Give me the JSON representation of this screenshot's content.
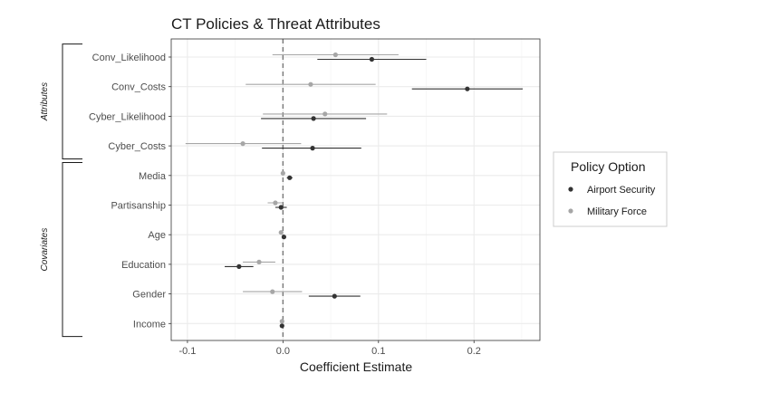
{
  "chart_data": {
    "type": "scatter",
    "subtype": "coefficient-plot-with-confidence-intervals",
    "title": "CT Policies & Threat Attributes",
    "xlabel": "Coefficient Estimate",
    "ylabel": "",
    "xlim": [
      -0.117,
      0.269
    ],
    "x_ticks": [
      -0.1,
      0.0,
      0.1,
      0.2
    ],
    "x_tick_labels": [
      "-0.1",
      "0.0",
      "0.1",
      "0.2"
    ],
    "reference_line": 0,
    "grid": true,
    "legend": {
      "title": "Policy Option",
      "position": "right"
    },
    "categories": [
      "Conv_Likelihood",
      "Conv_Costs",
      "Cyber_Likelihood",
      "Cyber_Costs",
      "Media",
      "Partisanship",
      "Age",
      "Education",
      "Gender",
      "Income"
    ],
    "groups": [
      {
        "label": "Attributes",
        "categories": [
          "Conv_Likelihood",
          "Conv_Costs",
          "Cyber_Likelihood",
          "Cyber_Costs"
        ]
      },
      {
        "label": "Covariates",
        "categories": [
          "Media",
          "Partisanship",
          "Age",
          "Education",
          "Gender",
          "Income"
        ]
      }
    ],
    "series": [
      {
        "name": "Airport Security",
        "color": "#333333",
        "estimates": [
          0.093,
          0.193,
          0.032,
          0.031,
          0.007,
          -0.002,
          0.001,
          -0.046,
          0.054,
          -0.001
        ],
        "lower": [
          0.036,
          0.135,
          -0.023,
          -0.022,
          0.004,
          -0.008,
          -0.001,
          -0.061,
          0.027,
          -0.003
        ],
        "upper": [
          0.15,
          0.251,
          0.087,
          0.082,
          0.01,
          0.004,
          0.003,
          -0.031,
          0.081,
          0.001
        ]
      },
      {
        "name": "Military Force",
        "color": "#a6a6a6",
        "estimates": [
          0.055,
          0.029,
          0.044,
          -0.042,
          0.0,
          -0.008,
          -0.002,
          -0.025,
          -0.011,
          -0.001
        ],
        "lower": [
          -0.011,
          -0.039,
          -0.021,
          -0.102,
          -0.002,
          -0.016,
          -0.004,
          -0.042,
          -0.042,
          -0.003
        ],
        "upper": [
          0.121,
          0.097,
          0.109,
          0.019,
          0.002,
          0.0,
          0.0,
          -0.008,
          0.02,
          0.001
        ]
      }
    ]
  }
}
